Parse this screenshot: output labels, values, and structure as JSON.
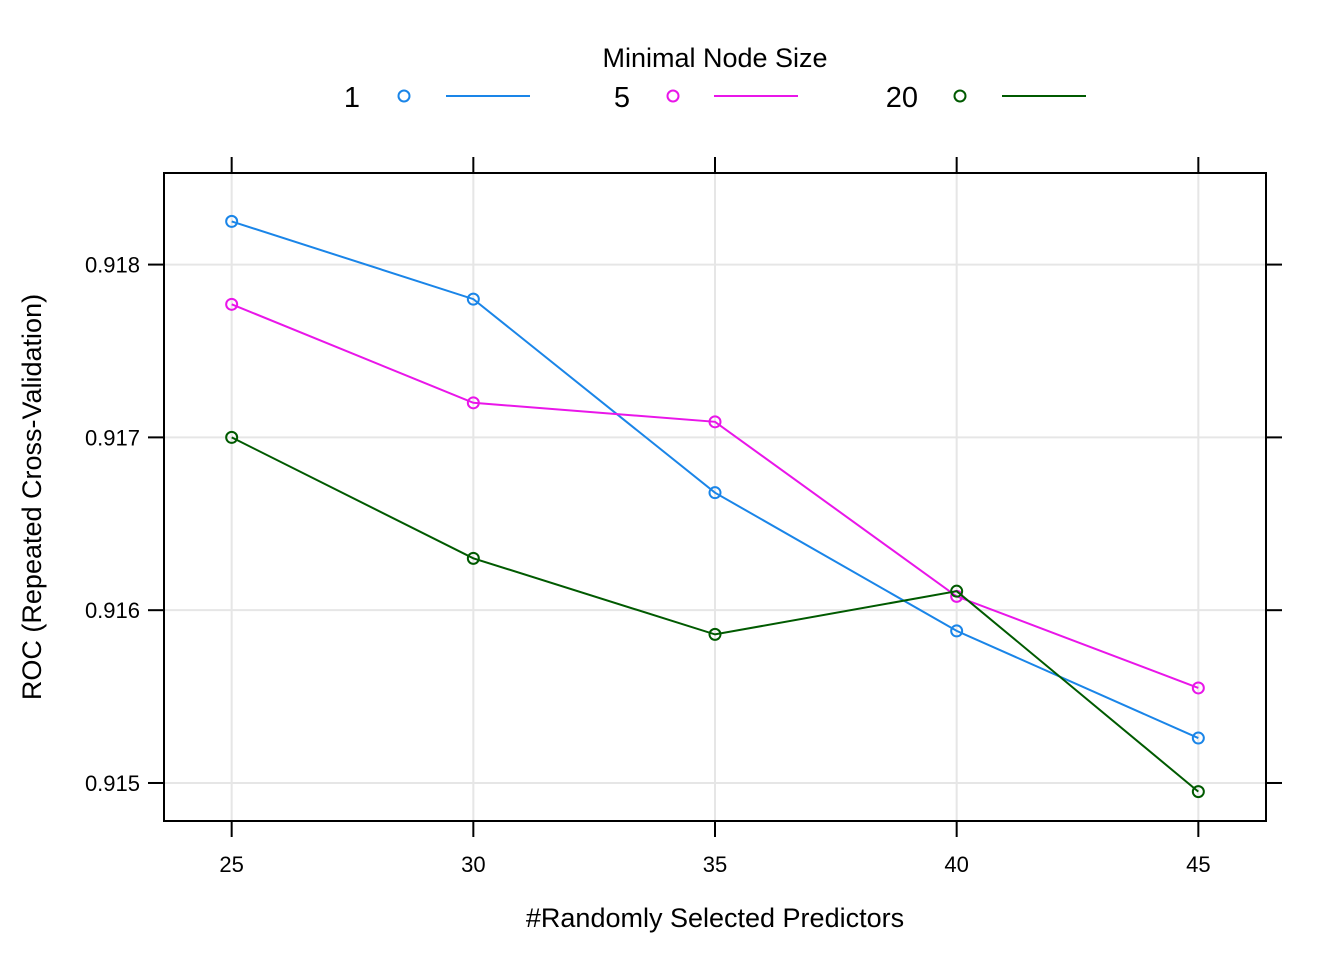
{
  "chart_data": {
    "type": "line",
    "legend": {
      "title": "Minimal Node Size",
      "placement": "top"
    },
    "xlabel": "#Randomly Selected Predictors",
    "ylabel": "ROC (Repeated Cross-Validation)",
    "x": [
      25,
      30,
      35,
      40,
      45
    ],
    "xticks": [
      25,
      30,
      35,
      40,
      45
    ],
    "yticks": [
      0.915,
      0.916,
      0.917,
      0.918
    ],
    "ytick_labels": [
      "0.915",
      "0.916",
      "0.917",
      "0.918"
    ],
    "xlim": [
      23.6,
      46.4
    ],
    "ylim": [
      0.91478,
      0.91853
    ],
    "grid": true,
    "series": [
      {
        "name": "1",
        "color": "#1a85e8",
        "values": [
          0.91825,
          0.9178,
          0.91668,
          0.91588,
          0.91526
        ]
      },
      {
        "name": "5",
        "color": "#e916e9",
        "values": [
          0.91777,
          0.9172,
          0.91709,
          0.91608,
          0.91555
        ]
      },
      {
        "name": "20",
        "color": "#005a00",
        "values": [
          0.917,
          0.9163,
          0.91586,
          0.91611,
          0.91495
        ]
      }
    ]
  }
}
